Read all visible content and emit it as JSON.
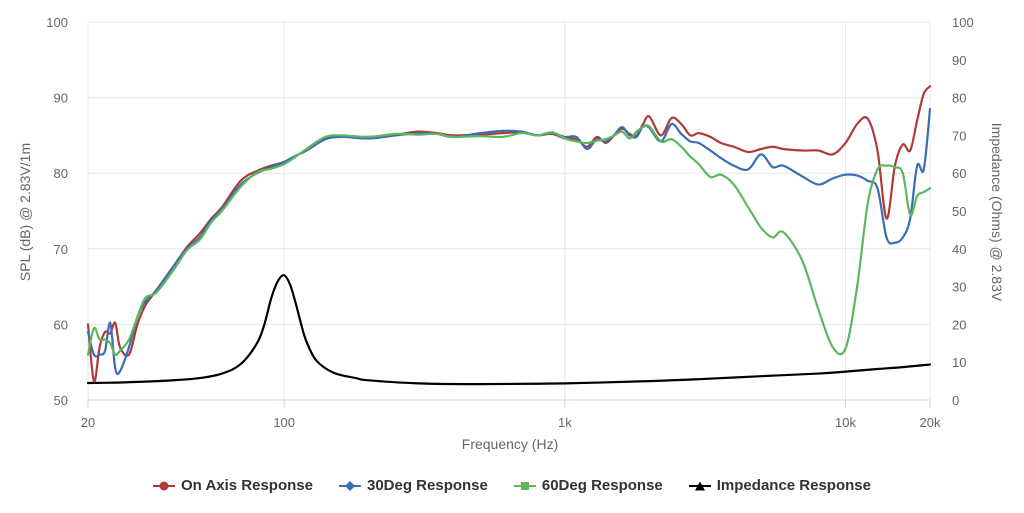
{
  "chart_data": {
    "type": "line",
    "xlabel": "Frequency (Hz)",
    "ylabel_left": "SPL (dB) @ 2.83V/1m",
    "ylabel_right": "Impedance (Ohms) @ 2.83V",
    "x_scale": "log",
    "xlim": [
      20,
      20000
    ],
    "ylim_left": [
      50,
      100
    ],
    "ylim_right": [
      0,
      100
    ],
    "x_ticks": [
      {
        "value": 20,
        "label": "20"
      },
      {
        "value": 100,
        "label": "100"
      },
      {
        "value": 1000,
        "label": "1k"
      },
      {
        "value": 10000,
        "label": "10k"
      },
      {
        "value": 20000,
        "label": "20k"
      }
    ],
    "y_ticks_left": [
      50,
      60,
      70,
      80,
      90,
      100
    ],
    "y_ticks_right": [
      0,
      10,
      20,
      30,
      40,
      50,
      60,
      70,
      80,
      90,
      100
    ],
    "grid": true,
    "legend_position": "bottom",
    "series": [
      {
        "name": "On Axis Response",
        "color": "#b03a3a",
        "marker": "circle",
        "axis": "left",
        "x": [
          20,
          21,
          22,
          23,
          24,
          25,
          26,
          28,
          30,
          32,
          35,
          40,
          45,
          50,
          55,
          60,
          70,
          80,
          90,
          100,
          110,
          120,
          140,
          160,
          200,
          250,
          300,
          350,
          400,
          500,
          600,
          700,
          800,
          900,
          1000,
          1100,
          1200,
          1300,
          1400,
          1500,
          1600,
          1700,
          1800,
          1900,
          2000,
          2200,
          2400,
          2600,
          2800,
          3000,
          3300,
          3600,
          4000,
          4500,
          5000,
          5500,
          6000,
          7000,
          8000,
          9000,
          10000,
          11000,
          12000,
          13000,
          14000,
          15000,
          16000,
          17000,
          18000,
          19000,
          20000
        ],
        "y": [
          60,
          52.5,
          57,
          59,
          58.8,
          60.2,
          57,
          56,
          60,
          62.5,
          64.5,
          67.5,
          70.2,
          72,
          74,
          75.5,
          79,
          80.3,
          81,
          81.5,
          82.3,
          83,
          84.5,
          84.8,
          84.8,
          85.1,
          85.5,
          85.3,
          85,
          85.1,
          85.3,
          85.4,
          85,
          85.2,
          84.6,
          84.5,
          83.5,
          84.8,
          84,
          85,
          85.9,
          85.2,
          85,
          86.5,
          87.5,
          85,
          87.3,
          86.5,
          85,
          85.3,
          84.8,
          84,
          83.5,
          82.8,
          83.2,
          83.5,
          83.2,
          83,
          83,
          82.5,
          84,
          86.5,
          87.2,
          83,
          74,
          81,
          83.8,
          83,
          87,
          90.5,
          91.5
        ]
      },
      {
        "name": "30Deg Response",
        "color": "#3b6db3",
        "marker": "diamond",
        "axis": "left",
        "x": [
          20,
          21,
          22,
          23,
          24,
          25,
          26,
          28,
          30,
          32,
          35,
          40,
          45,
          50,
          55,
          60,
          70,
          80,
          90,
          100,
          110,
          120,
          140,
          160,
          200,
          250,
          300,
          350,
          400,
          500,
          600,
          700,
          800,
          900,
          1000,
          1100,
          1200,
          1300,
          1400,
          1500,
          1600,
          1700,
          1800,
          1900,
          2000,
          2200,
          2400,
          2600,
          2800,
          3000,
          3300,
          3600,
          4000,
          4500,
          5000,
          5500,
          6000,
          7000,
          8000,
          9000,
          10000,
          11000,
          12000,
          13000,
          14000,
          15000,
          16000,
          17000,
          18000,
          19000,
          20000
        ],
        "y": [
          59,
          56,
          56,
          56.5,
          60.2,
          54.2,
          53.8,
          57,
          61,
          63,
          64.5,
          67.5,
          70,
          71.5,
          73.8,
          75.2,
          78.5,
          80,
          80.8,
          81.5,
          82.3,
          83,
          84.5,
          84.8,
          84.6,
          85,
          85.3,
          85.2,
          84.8,
          85.3,
          85.6,
          85.5,
          85,
          85.3,
          84.8,
          84.8,
          83.2,
          84.5,
          84.2,
          85.1,
          86.1,
          85,
          84.8,
          86.2,
          86,
          84.2,
          86.5,
          85.2,
          84.2,
          84,
          83,
          82,
          81,
          80.5,
          82.5,
          80.8,
          81,
          79.6,
          78.5,
          79.3,
          79.8,
          79.7,
          79,
          78,
          71.5,
          70.8,
          71.5,
          74,
          81,
          80.5,
          88.5
        ]
      },
      {
        "name": "60Deg Response",
        "color": "#5cb85c",
        "marker": "square",
        "axis": "left",
        "x": [
          20,
          21,
          22,
          23,
          24,
          25,
          26,
          28,
          30,
          32,
          35,
          40,
          45,
          50,
          55,
          60,
          70,
          80,
          90,
          100,
          110,
          120,
          140,
          160,
          200,
          250,
          300,
          350,
          400,
          500,
          600,
          700,
          800,
          900,
          1000,
          1100,
          1200,
          1300,
          1400,
          1500,
          1600,
          1700,
          1800,
          1900,
          2000,
          2200,
          2400,
          2600,
          2800,
          3000,
          3300,
          3600,
          4000,
          4500,
          5000,
          5500,
          6000,
          7000,
          8000,
          9000,
          10000,
          11000,
          12000,
          13000,
          14000,
          15000,
          16000,
          17000,
          18000,
          19000,
          20000
        ],
        "y": [
          56,
          59.5,
          58,
          58,
          57.5,
          56,
          56.5,
          58,
          61,
          63.5,
          64.2,
          67,
          69.8,
          71.2,
          73.5,
          75,
          78.2,
          80.1,
          80.6,
          81.2,
          82.2,
          83.2,
          84.8,
          85,
          84.8,
          85.2,
          85.1,
          85.2,
          84.8,
          84.9,
          84.8,
          85.3,
          85,
          85.4,
          84.6,
          84.2,
          84,
          84.3,
          84.5,
          85,
          85.5,
          84.6,
          85.5,
          86.1,
          86.2,
          84.2,
          84.5,
          83.5,
          82.2,
          81.2,
          79.5,
          79.8,
          78.5,
          75.5,
          72.8,
          71.5,
          72.2,
          68.5,
          62,
          57,
          56.8,
          65,
          76,
          80.5,
          81,
          80.8,
          80,
          74.5,
          77,
          77.5,
          78
        ]
      },
      {
        "name": "Impedance Response",
        "color": "#000000",
        "marker": "triangle",
        "axis": "right",
        "x": [
          20,
          25,
          30,
          40,
          50,
          60,
          70,
          80,
          85,
          90,
          95,
          100,
          105,
          110,
          115,
          120,
          130,
          150,
          180,
          200,
          300,
          500,
          1000,
          2000,
          3000,
          5000,
          8000,
          10000,
          13000,
          16000,
          20000
        ],
        "y": [
          4.5,
          4.6,
          4.8,
          5.2,
          5.8,
          7,
          9.5,
          15,
          20,
          27,
          31.5,
          33,
          30.5,
          25.5,
          20,
          15.5,
          10.5,
          7.2,
          5.8,
          5.2,
          4.4,
          4.2,
          4.4,
          5,
          5.5,
          6.3,
          7,
          7.5,
          8.2,
          8.7,
          9.4
        ]
      }
    ]
  }
}
